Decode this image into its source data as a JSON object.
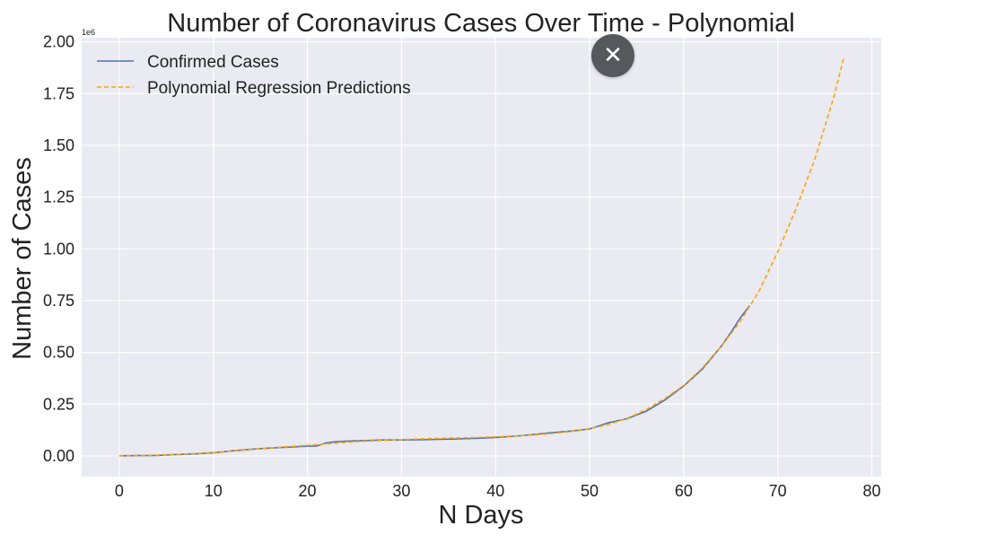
{
  "chart_data": {
    "type": "line",
    "title": "Number of Coronavirus Cases Over Time - Polynomial",
    "xlabel": "N Days",
    "ylabel": "Number of Cases",
    "y_offset_label": "1e6",
    "xlim": [
      -4,
      81
    ],
    "ylim": [
      -0.1,
      2.02
    ],
    "y_scale_factor": 1000000,
    "x_ticks": [
      0,
      10,
      20,
      30,
      40,
      50,
      60,
      70,
      80
    ],
    "y_ticks": [
      0.0,
      0.25,
      0.5,
      0.75,
      1.0,
      1.25,
      1.5,
      1.75,
      2.0
    ],
    "y_tick_labels": [
      "0.00",
      "0.25",
      "0.50",
      "0.75",
      "1.00",
      "1.25",
      "1.50",
      "1.75",
      "2.00"
    ],
    "grid": true,
    "legend_position": "top-left",
    "series": [
      {
        "name": "Confirmed Cases",
        "color": "#4c72b0",
        "style": "solid",
        "x": [
          0,
          2,
          4,
          6,
          8,
          10,
          12,
          14,
          16,
          18,
          20,
          21,
          22,
          23,
          24,
          26,
          28,
          30,
          32,
          34,
          36,
          38,
          40,
          42,
          44,
          46,
          48,
          50,
          51,
          52,
          54,
          56,
          58,
          60,
          62,
          63,
          64,
          65,
          66,
          67
        ],
        "y": [
          0.0006,
          0.0014,
          0.0025,
          0.0068,
          0.0095,
          0.0155,
          0.0245,
          0.032,
          0.038,
          0.042,
          0.047,
          0.048,
          0.063,
          0.068,
          0.071,
          0.074,
          0.077,
          0.077,
          0.078,
          0.08,
          0.082,
          0.085,
          0.089,
          0.095,
          0.103,
          0.112,
          0.12,
          0.13,
          0.145,
          0.16,
          0.18,
          0.215,
          0.27,
          0.338,
          0.42,
          0.475,
          0.53,
          0.595,
          0.665,
          0.725
        ]
      },
      {
        "name": "Polynomial Regression Predictions",
        "color": "#ffa500",
        "style": "dashed",
        "x": [
          0,
          2,
          4,
          6,
          8,
          10,
          12,
          14,
          16,
          18,
          20,
          22,
          24,
          26,
          28,
          30,
          32,
          34,
          36,
          38,
          40,
          42,
          44,
          46,
          48,
          50,
          52,
          54,
          56,
          58,
          60,
          62,
          64,
          66,
          68,
          70,
          72,
          74,
          76,
          77
        ],
        "y": [
          0.001,
          0.002,
          0.004,
          0.007,
          0.011,
          0.016,
          0.023,
          0.031,
          0.038,
          0.045,
          0.051,
          0.058,
          0.065,
          0.071,
          0.075,
          0.078,
          0.082,
          0.085,
          0.087,
          0.089,
          0.092,
          0.096,
          0.101,
          0.108,
          0.118,
          0.131,
          0.152,
          0.182,
          0.223,
          0.277,
          0.34,
          0.425,
          0.53,
          0.648,
          0.795,
          0.985,
          1.2,
          1.44,
          1.74,
          1.92
        ]
      }
    ]
  },
  "close_button": {
    "icon": "close-icon",
    "glyph": "✕"
  }
}
